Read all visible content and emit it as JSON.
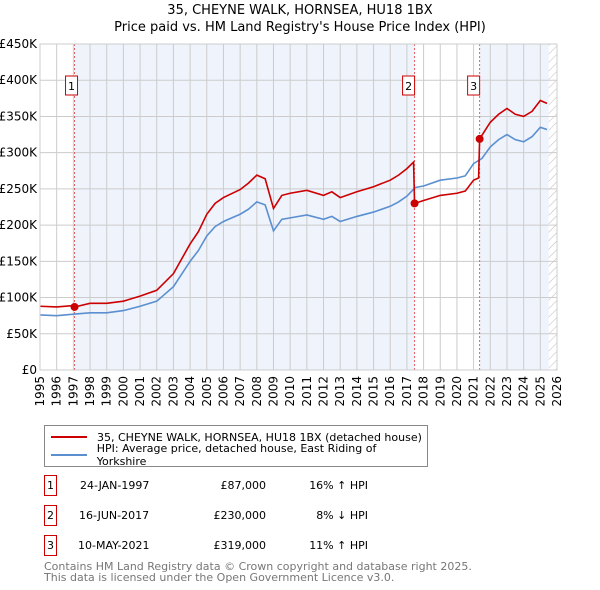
{
  "title": "35, CHEYNE WALK, HORNSEA, HU18 1BX",
  "subtitle": "Price paid vs. HM Land Registry's House Price Index (HPI)",
  "chart_data": {
    "type": "line",
    "title": "35, CHEYNE WALK, HORNSEA, HU18 1BX",
    "subtitle": "Price paid vs. HM Land Registry's House Price Index (HPI)",
    "xlim": [
      1995,
      2026
    ],
    "ylim": [
      0,
      450000
    ],
    "xticks": [
      "1995",
      "1996",
      "1997",
      "1998",
      "1999",
      "2000",
      "2001",
      "2002",
      "2003",
      "2004",
      "2005",
      "2006",
      "2007",
      "2008",
      "2009",
      "2010",
      "2011",
      "2012",
      "2013",
      "2014",
      "2015",
      "2016",
      "2017",
      "2018",
      "2019",
      "2020",
      "2021",
      "2022",
      "2023",
      "2024",
      "2025",
      "2026"
    ],
    "yticks": [
      {
        "v": 0,
        "l": "£0"
      },
      {
        "v": 50000,
        "l": "£50K"
      },
      {
        "v": 100000,
        "l": "£100K"
      },
      {
        "v": 150000,
        "l": "£150K"
      },
      {
        "v": 200000,
        "l": "£200K"
      },
      {
        "v": 250000,
        "l": "£250K"
      },
      {
        "v": 300000,
        "l": "£300K"
      },
      {
        "v": 350000,
        "l": "£350K"
      },
      {
        "v": 400000,
        "l": "£400K"
      },
      {
        "v": 450000,
        "l": "£450K"
      }
    ],
    "grid": true,
    "series": [
      {
        "name": "35, CHEYNE WALK, HORNSEA, HU18 1BX (detached house)",
        "color": "#cc0000",
        "x": [
          1995,
          1996,
          1997,
          1997.07,
          1998,
          1999,
          2000,
          2001,
          2002,
          2003,
          2004,
          2004.5,
          2005,
          2005.5,
          2006,
          2007,
          2007.5,
          2008,
          2008.5,
          2009,
          2009.5,
          2010,
          2011,
          2012,
          2012.5,
          2013,
          2014,
          2015,
          2016,
          2016.5,
          2017,
          2017.4,
          2017.46,
          2018,
          2019,
          2020,
          2020.5,
          2021,
          2021.3,
          2021.36,
          2021.5,
          2022,
          2022.5,
          2023,
          2023.5,
          2024,
          2024.5,
          2025,
          2025.4
        ],
        "y": [
          88000,
          87000,
          89000,
          87000,
          92000,
          92000,
          95000,
          102000,
          110000,
          133000,
          174000,
          191000,
          215000,
          230000,
          238000,
          249000,
          258000,
          269000,
          264000,
          223000,
          241000,
          244000,
          248000,
          241000,
          246000,
          238000,
          246000,
          253000,
          262000,
          269000,
          278000,
          287000,
          230000,
          234000,
          241000,
          244000,
          247000,
          262000,
          265000,
          319000,
          324000,
          342000,
          353000,
          361000,
          353000,
          350000,
          357000,
          372000,
          368000
        ]
      },
      {
        "name": "HPI: Average price, detached house, East Riding of Yorkshire",
        "color": "#5b8fd0",
        "x": [
          1995,
          1996,
          1997,
          1998,
          1999,
          2000,
          2001,
          2002,
          2003,
          2004,
          2004.5,
          2005,
          2005.5,
          2006,
          2007,
          2007.5,
          2008,
          2008.5,
          2009,
          2009.5,
          2010,
          2011,
          2012,
          2012.5,
          2013,
          2014,
          2015,
          2016,
          2016.5,
          2017,
          2017.5,
          2018,
          2019,
          2020,
          2020.5,
          2021,
          2021.5,
          2022,
          2022.5,
          2023,
          2023.5,
          2024,
          2024.5,
          2025,
          2025.4
        ],
        "y": [
          76000,
          75000,
          77000,
          79000,
          79000,
          82000,
          88000,
          95000,
          115000,
          150000,
          165000,
          185000,
          198000,
          205000,
          215000,
          222000,
          232000,
          228000,
          192000,
          208000,
          210000,
          214000,
          208000,
          212000,
          205000,
          212000,
          218000,
          226000,
          232000,
          240000,
          252000,
          254000,
          262000,
          265000,
          268000,
          285000,
          292000,
          308000,
          318000,
          325000,
          318000,
          315000,
          322000,
          335000,
          332000
        ]
      }
    ],
    "sales": [
      {
        "n": "1",
        "x": 1997.07,
        "y": 87000
      },
      {
        "n": "2",
        "x": 2017.46,
        "y": 230000
      },
      {
        "n": "3",
        "x": 2021.36,
        "y": 319000
      }
    ],
    "forecast_start": 2025.5,
    "legend": "below"
  },
  "legend": {
    "red": "35, CHEYNE WALK, HORNSEA, HU18 1BX (detached house)",
    "blue": "HPI: Average price, detached house, East Riding of Yorkshire"
  },
  "transactions": [
    {
      "n": "1",
      "date": "24-JAN-1997",
      "price": "£87,000",
      "hpi": "16% ↑ HPI"
    },
    {
      "n": "2",
      "date": "16-JUN-2017",
      "price": "£230,000",
      "hpi": "8% ↓ HPI"
    },
    {
      "n": "3",
      "date": "10-MAY-2021",
      "price": "£319,000",
      "hpi": "11% ↑ HPI"
    }
  ],
  "footer": {
    "line1": "Contains HM Land Registry data © Crown copyright and database right 2025.",
    "line2": "This data is licensed under the Open Government Licence v3.0."
  }
}
